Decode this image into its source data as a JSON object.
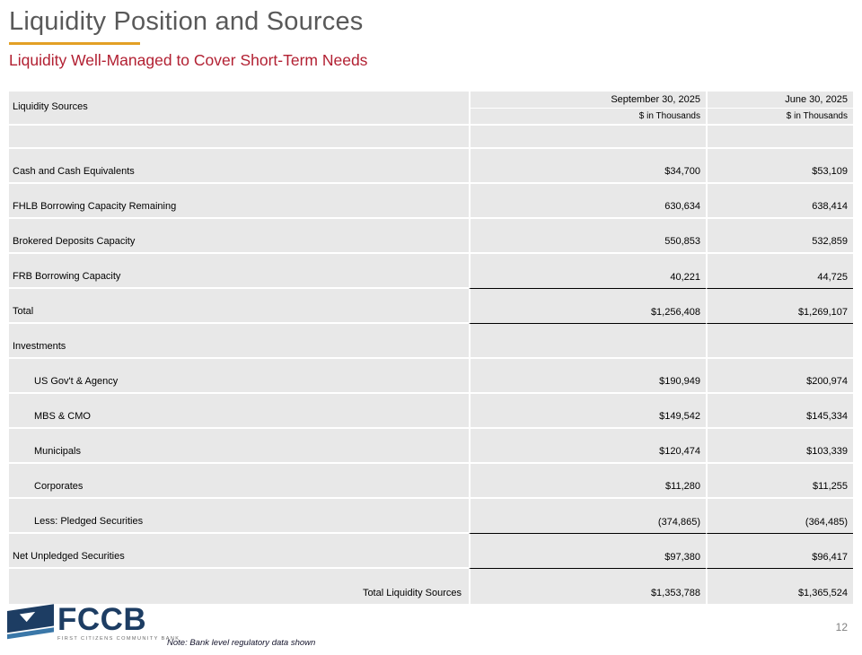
{
  "slide": {
    "title": "Liquidity Position and Sources",
    "subtitle": "Liquidity Well-Managed to Cover Short-Term Needs",
    "note": "Note: Bank level regulatory data shown",
    "page_number": "12"
  },
  "logo": {
    "word": "FCCB",
    "tagline": "FIRST CITIZENS COMMUNITY BANK"
  },
  "colors": {
    "accent_gold": "#E3A025",
    "subtitle_red": "#B22032",
    "row_bg": "#E8E8E8",
    "logo_navy": "#1D3D63",
    "logo_steel": "#3A77A8"
  },
  "table": {
    "header": {
      "col1": "Liquidity Sources",
      "col2_date": "September 30, 2025",
      "col3_date": "June 30, 2025",
      "col2_units": "$ in Thousands",
      "col3_units": "$ in Thousands"
    },
    "rows": [
      {
        "label": "",
        "v1": "",
        "v2": "",
        "blank": true
      },
      {
        "label": "Cash and Cash Equivalents",
        "v1": "$34,700",
        "v2": "$53,109"
      },
      {
        "label": "FHLB Borrowing Capacity Remaining",
        "v1": "630,634",
        "v2": "638,414"
      },
      {
        "label": "Brokered Deposits Capacity",
        "v1": "550,853",
        "v2": "532,859"
      },
      {
        "label": "FRB Borrowing Capacity",
        "v1": "40,221",
        "v2": "44,725",
        "underline": true
      },
      {
        "label": "Total",
        "v1": "$1,256,408",
        "v2": "$1,269,107",
        "underline": true
      },
      {
        "label": "Investments",
        "v1": "",
        "v2": ""
      },
      {
        "label": "US Gov't & Agency",
        "v1": "$190,949",
        "v2": "$200,974",
        "indent": true
      },
      {
        "label": "MBS & CMO",
        "v1": "$149,542",
        "v2": "$145,334",
        "indent": true
      },
      {
        "label": "Municipals",
        "v1": "$120,474",
        "v2": "$103,339",
        "indent": true
      },
      {
        "label": "Corporates",
        "v1": "$11,280",
        "v2": "$11,255",
        "indent": true
      },
      {
        "label": "Less: Pledged Securities",
        "v1": "(374,865)",
        "v2": "(364,485)",
        "indent": true,
        "underline": true
      },
      {
        "label": "Net Unpledged Securities",
        "v1": "$97,380",
        "v2": "$96,417",
        "underline": true
      },
      {
        "label": "Total Liquidity Sources",
        "v1": "$1,353,788",
        "v2": "$1,365,524",
        "label_right": true
      }
    ]
  }
}
